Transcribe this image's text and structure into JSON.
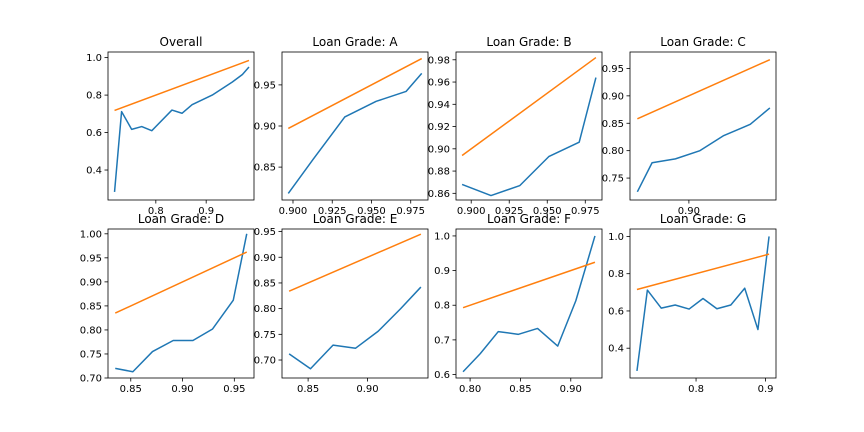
{
  "figure": {
    "background": "#ffffff"
  },
  "colors": {
    "calibration": "#1f77b4",
    "reference": "#ff7f0e"
  },
  "chart_data": [
    {
      "type": "line",
      "title": "Overall",
      "xlim": [
        0.705,
        0.995
      ],
      "ylim": [
        0.24,
        1.03
      ],
      "xticks": [
        0.8,
        0.9
      ],
      "xtick_labels": [
        "0.8",
        "0.9"
      ],
      "yticks": [
        0.4,
        0.6,
        0.8,
        1.0
      ],
      "ytick_labels": [
        "0.4",
        "0.6",
        "0.8",
        "1.0"
      ],
      "grid": false,
      "series": [
        {
          "color": "#1f77b4",
          "x": [
            0.718,
            0.732,
            0.752,
            0.772,
            0.792,
            0.832,
            0.852,
            0.872,
            0.912,
            0.952,
            0.972,
            0.985
          ],
          "y": [
            0.283,
            0.712,
            0.617,
            0.632,
            0.61,
            0.72,
            0.703,
            0.749,
            0.8,
            0.87,
            0.91,
            0.95
          ]
        },
        {
          "color": "#ff7f0e",
          "x": [
            0.718,
            0.985
          ],
          "y": [
            0.718,
            0.985
          ]
        }
      ]
    },
    {
      "type": "line",
      "title": "Loan Grade: A",
      "xlim": [
        0.893,
        0.986
      ],
      "ylim": [
        0.81,
        0.99
      ],
      "xticks": [
        0.9,
        0.925,
        0.95,
        0.975
      ],
      "xtick_labels": [
        "0.900",
        "0.925",
        "0.950",
        "0.975"
      ],
      "yticks": [
        0.85,
        0.9,
        0.95
      ],
      "ytick_labels": [
        "0.85",
        "0.90",
        "0.95"
      ],
      "grid": false,
      "series": [
        {
          "color": "#1f77b4",
          "x": [
            0.897,
            0.913,
            0.933,
            0.953,
            0.972,
            0.982
          ],
          "y": [
            0.818,
            0.86,
            0.911,
            0.93,
            0.942,
            0.964
          ]
        },
        {
          "color": "#ff7f0e",
          "x": [
            0.897,
            0.982
          ],
          "y": [
            0.897,
            0.982
          ]
        }
      ]
    },
    {
      "type": "line",
      "title": "Loan Grade: B",
      "xlim": [
        0.89,
        0.986
      ],
      "ylim": [
        0.854,
        0.987
      ],
      "xticks": [
        0.9,
        0.925,
        0.95,
        0.975
      ],
      "xtick_labels": [
        "0.900",
        "0.925",
        "0.950",
        "0.975"
      ],
      "yticks": [
        0.86,
        0.88,
        0.9,
        0.92,
        0.94,
        0.96,
        0.98
      ],
      "ytick_labels": [
        "0.86",
        "0.88",
        "0.90",
        "0.92",
        "0.94",
        "0.96",
        "0.98"
      ],
      "grid": false,
      "series": [
        {
          "color": "#1f77b4",
          "x": [
            0.894,
            0.913,
            0.932,
            0.951,
            0.971,
            0.982
          ],
          "y": [
            0.868,
            0.858,
            0.867,
            0.893,
            0.906,
            0.964
          ]
        },
        {
          "color": "#ff7f0e",
          "x": [
            0.894,
            0.982
          ],
          "y": [
            0.894,
            0.982
          ]
        }
      ]
    },
    {
      "type": "line",
      "title": "Loan Grade: C",
      "xlim": [
        0.852,
        0.971
      ],
      "ylim": [
        0.71,
        0.98
      ],
      "xticks": [
        0.9
      ],
      "xtick_labels": [
        "0.90"
      ],
      "yticks": [
        0.75,
        0.8,
        0.85,
        0.9,
        0.95
      ],
      "ytick_labels": [
        "0.75",
        "0.80",
        "0.85",
        "0.90",
        "0.95"
      ],
      "grid": false,
      "series": [
        {
          "color": "#1f77b4",
          "x": [
            0.858,
            0.87,
            0.889,
            0.909,
            0.928,
            0.95,
            0.966
          ],
          "y": [
            0.725,
            0.778,
            0.785,
            0.8,
            0.827,
            0.848,
            0.878
          ]
        },
        {
          "color": "#ff7f0e",
          "x": [
            0.858,
            0.966
          ],
          "y": [
            0.858,
            0.966
          ]
        }
      ]
    },
    {
      "type": "line",
      "title": "Loan Grade: D",
      "xlim": [
        0.828,
        0.969
      ],
      "ylim": [
        0.7,
        1.01
      ],
      "xticks": [
        0.85,
        0.9,
        0.95
      ],
      "xtick_labels": [
        "0.85",
        "0.90",
        "0.95"
      ],
      "yticks": [
        0.7,
        0.75,
        0.8,
        0.85,
        0.9,
        0.95,
        1.0
      ],
      "ytick_labels": [
        "0.70",
        "0.75",
        "0.80",
        "0.85",
        "0.90",
        "0.95",
        "1.00"
      ],
      "grid": false,
      "series": [
        {
          "color": "#1f77b4",
          "x": [
            0.835,
            0.852,
            0.871,
            0.891,
            0.91,
            0.929,
            0.949,
            0.962
          ],
          "y": [
            0.72,
            0.713,
            0.755,
            0.778,
            0.778,
            0.802,
            0.862,
            1.0
          ]
        },
        {
          "color": "#ff7f0e",
          "x": [
            0.835,
            0.962
          ],
          "y": [
            0.835,
            0.962
          ]
        }
      ]
    },
    {
      "type": "line",
      "title": "Loan Grade: E",
      "xlim": [
        0.828,
        0.951
      ],
      "ylim": [
        0.665,
        0.955
      ],
      "xticks": [
        0.85,
        0.9
      ],
      "xtick_labels": [
        "0.85",
        "0.90"
      ],
      "yticks": [
        0.7,
        0.75,
        0.8,
        0.85,
        0.9,
        0.95
      ],
      "ytick_labels": [
        "0.70",
        "0.75",
        "0.80",
        "0.85",
        "0.90",
        "0.95"
      ],
      "grid": false,
      "series": [
        {
          "color": "#1f77b4",
          "x": [
            0.834,
            0.852,
            0.871,
            0.89,
            0.909,
            0.928,
            0.945
          ],
          "y": [
            0.712,
            0.683,
            0.729,
            0.723,
            0.756,
            0.8,
            0.842
          ]
        },
        {
          "color": "#ff7f0e",
          "x": [
            0.834,
            0.945
          ],
          "y": [
            0.834,
            0.945
          ]
        }
      ]
    },
    {
      "type": "line",
      "title": "Loan Grade: F",
      "xlim": [
        0.786,
        0.931
      ],
      "ylim": [
        0.59,
        1.02
      ],
      "xticks": [
        0.8,
        0.85,
        0.9
      ],
      "xtick_labels": [
        "0.80",
        "0.85",
        "0.90"
      ],
      "yticks": [
        0.6,
        0.7,
        0.8,
        0.9,
        1.0
      ],
      "ytick_labels": [
        "0.6",
        "0.7",
        "0.8",
        "0.9",
        "1.0"
      ],
      "grid": false,
      "series": [
        {
          "color": "#1f77b4",
          "x": [
            0.793,
            0.81,
            0.828,
            0.848,
            0.867,
            0.887,
            0.905,
            0.924
          ],
          "y": [
            0.608,
            0.66,
            0.724,
            0.716,
            0.733,
            0.682,
            0.813,
            1.0
          ]
        },
        {
          "color": "#ff7f0e",
          "x": [
            0.793,
            0.924
          ],
          "y": [
            0.793,
            0.924
          ]
        }
      ]
    },
    {
      "type": "line",
      "title": "Loan Grade: G",
      "xlim": [
        0.705,
        0.915
      ],
      "ylim": [
        0.24,
        1.04
      ],
      "xticks": [
        0.8,
        0.9
      ],
      "xtick_labels": [
        "0.8",
        "0.9"
      ],
      "yticks": [
        0.4,
        0.6,
        0.8,
        1.0
      ],
      "ytick_labels": [
        "0.4",
        "0.6",
        "0.8",
        "1.0"
      ],
      "grid": false,
      "series": [
        {
          "color": "#1f77b4",
          "x": [
            0.715,
            0.73,
            0.75,
            0.77,
            0.79,
            0.81,
            0.83,
            0.85,
            0.87,
            0.889,
            0.905
          ],
          "y": [
            0.278,
            0.712,
            0.615,
            0.632,
            0.61,
            0.667,
            0.612,
            0.632,
            0.722,
            0.5,
            1.0
          ]
        },
        {
          "color": "#ff7f0e",
          "x": [
            0.715,
            0.905
          ],
          "y": [
            0.715,
            0.905
          ]
        }
      ]
    }
  ]
}
